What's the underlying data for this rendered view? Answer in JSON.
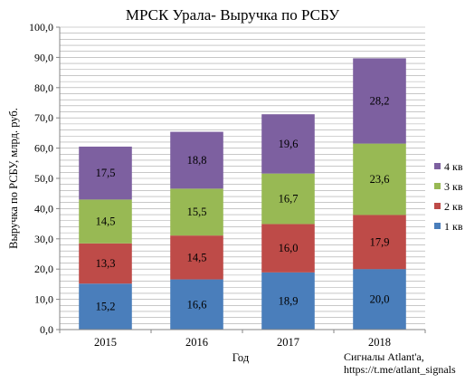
{
  "chart_data": {
    "type": "bar",
    "stacked": true,
    "title": "МРСК Урала- Выручка по РСБУ",
    "xlabel": "Год",
    "ylabel": "Выручка по РСБУ, млрд. руб.",
    "categories": [
      "2015",
      "2016",
      "2017",
      "2018"
    ],
    "ylim": [
      0,
      100
    ],
    "y_ticks": [
      "0,0",
      "10,0",
      "20,0",
      "30,0",
      "40,0",
      "50,0",
      "60,0",
      "70,0",
      "80,0",
      "90,0",
      "100,0"
    ],
    "grid": true,
    "legend_position": "right",
    "series": [
      {
        "name": "1 кв",
        "color": "#4a7ebb",
        "values": [
          15.2,
          16.6,
          18.9,
          20.0
        ],
        "labels": [
          "15,2",
          "16,6",
          "18,9",
          "20,0"
        ]
      },
      {
        "name": "2 кв",
        "color": "#be4b48",
        "values": [
          13.3,
          14.5,
          16.0,
          17.9
        ],
        "labels": [
          "13,3",
          "14,5",
          "16,0",
          "17,9"
        ]
      },
      {
        "name": "3 кв",
        "color": "#98b954",
        "values": [
          14.5,
          15.5,
          16.7,
          23.6
        ],
        "labels": [
          "14,5",
          "15,5",
          "16,7",
          "23,6"
        ]
      },
      {
        "name": "4 кв",
        "color": "#7d60a0",
        "values": [
          17.5,
          18.8,
          19.6,
          28.2
        ],
        "labels": [
          "17,5",
          "18,8",
          "19,6",
          "28,2"
        ]
      }
    ],
    "annotation": {
      "line1": "Сигналы Atlant'a,",
      "line2": "https://t.me/atlant_signals"
    }
  }
}
